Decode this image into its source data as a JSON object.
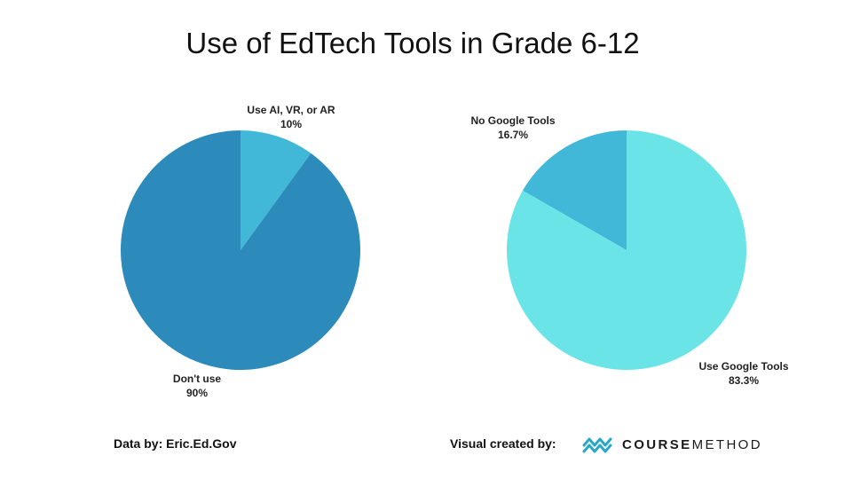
{
  "title": "Use of EdTech Tools in Grade 6-12",
  "chart_data": [
    {
      "type": "pie",
      "title": "",
      "slices": [
        {
          "label": "Use AI, VR, or AR",
          "value": 10,
          "value_label": "10%",
          "color": "#42b8d8"
        },
        {
          "label": "Don't use",
          "value": 90,
          "value_label": "90%",
          "color": "#2d8bbc"
        }
      ]
    },
    {
      "type": "pie",
      "title": "",
      "slices": [
        {
          "label": "Use Google Tools",
          "value": 83.3,
          "value_label": "83.3%",
          "color": "#6be4e8"
        },
        {
          "label": "No Google Tools",
          "value": 16.7,
          "value_label": "16.7%",
          "color": "#42b8d8"
        }
      ]
    }
  ],
  "footer": {
    "source": "Data by:  Eric.Ed.Gov",
    "credit": "Visual created by:",
    "logo_bold": "COURSE",
    "logo_light": "METHOD",
    "logo_color": "#2aa8c8"
  }
}
